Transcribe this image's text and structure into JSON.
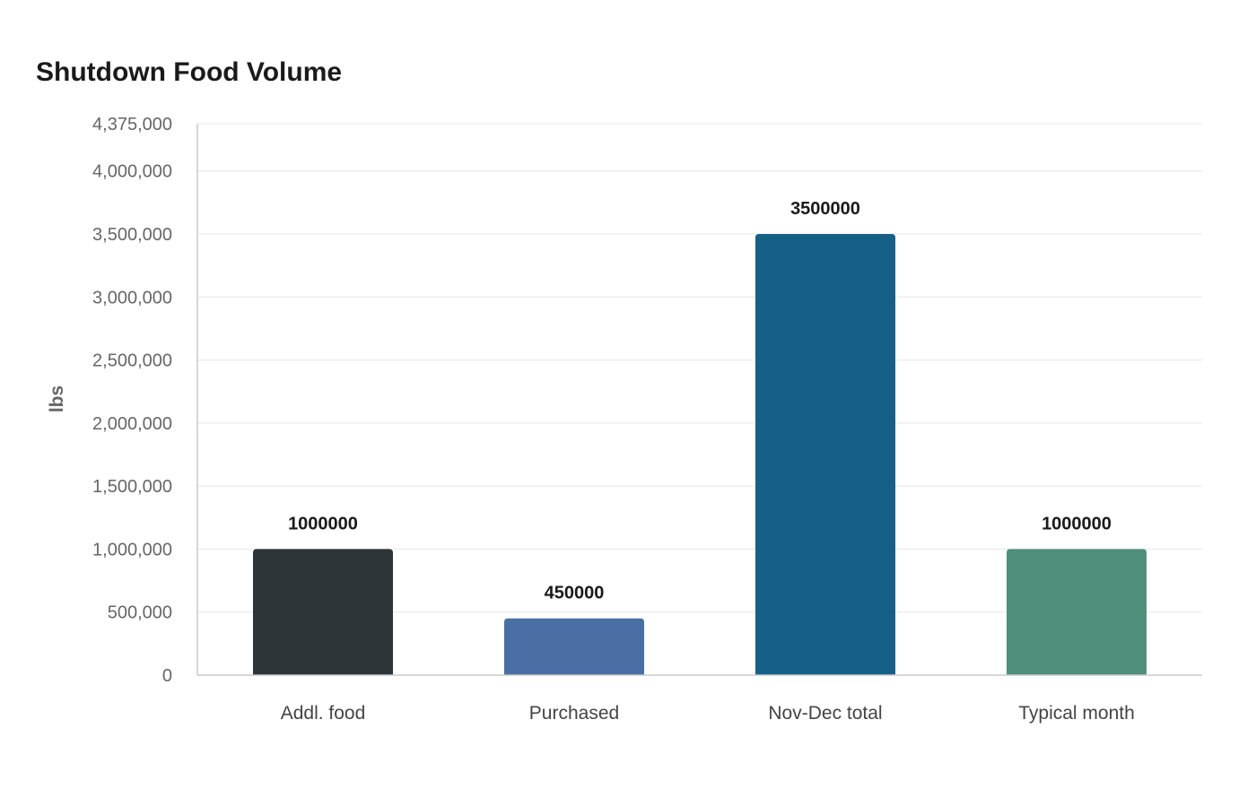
{
  "chart_data": {
    "type": "bar",
    "title": "Shutdown Food Volume",
    "xlabel": "",
    "ylabel": "lbs",
    "categories": [
      "Addl. food",
      "Purchased",
      "Nov-Dec total",
      "Typical month"
    ],
    "values": [
      1000000,
      450000,
      3500000,
      1000000
    ],
    "value_labels": [
      "1000000",
      "450000",
      "3500000",
      "1000000"
    ],
    "colors": [
      "#2e3538",
      "#4a6fa5",
      "#166088",
      "#4f8f7b"
    ],
    "ylim": [
      0,
      4375000
    ],
    "y_ticks": [
      0,
      500000,
      1000000,
      1500000,
      2000000,
      2500000,
      3000000,
      3500000,
      4000000,
      4375000
    ],
    "y_tick_labels": [
      "0",
      "500,000",
      "1,000,000",
      "1,500,000",
      "2,000,000",
      "2,500,000",
      "3,000,000",
      "3,500,000",
      "4,000,000",
      "4,375,000"
    ],
    "grid": true,
    "legend": "none"
  }
}
